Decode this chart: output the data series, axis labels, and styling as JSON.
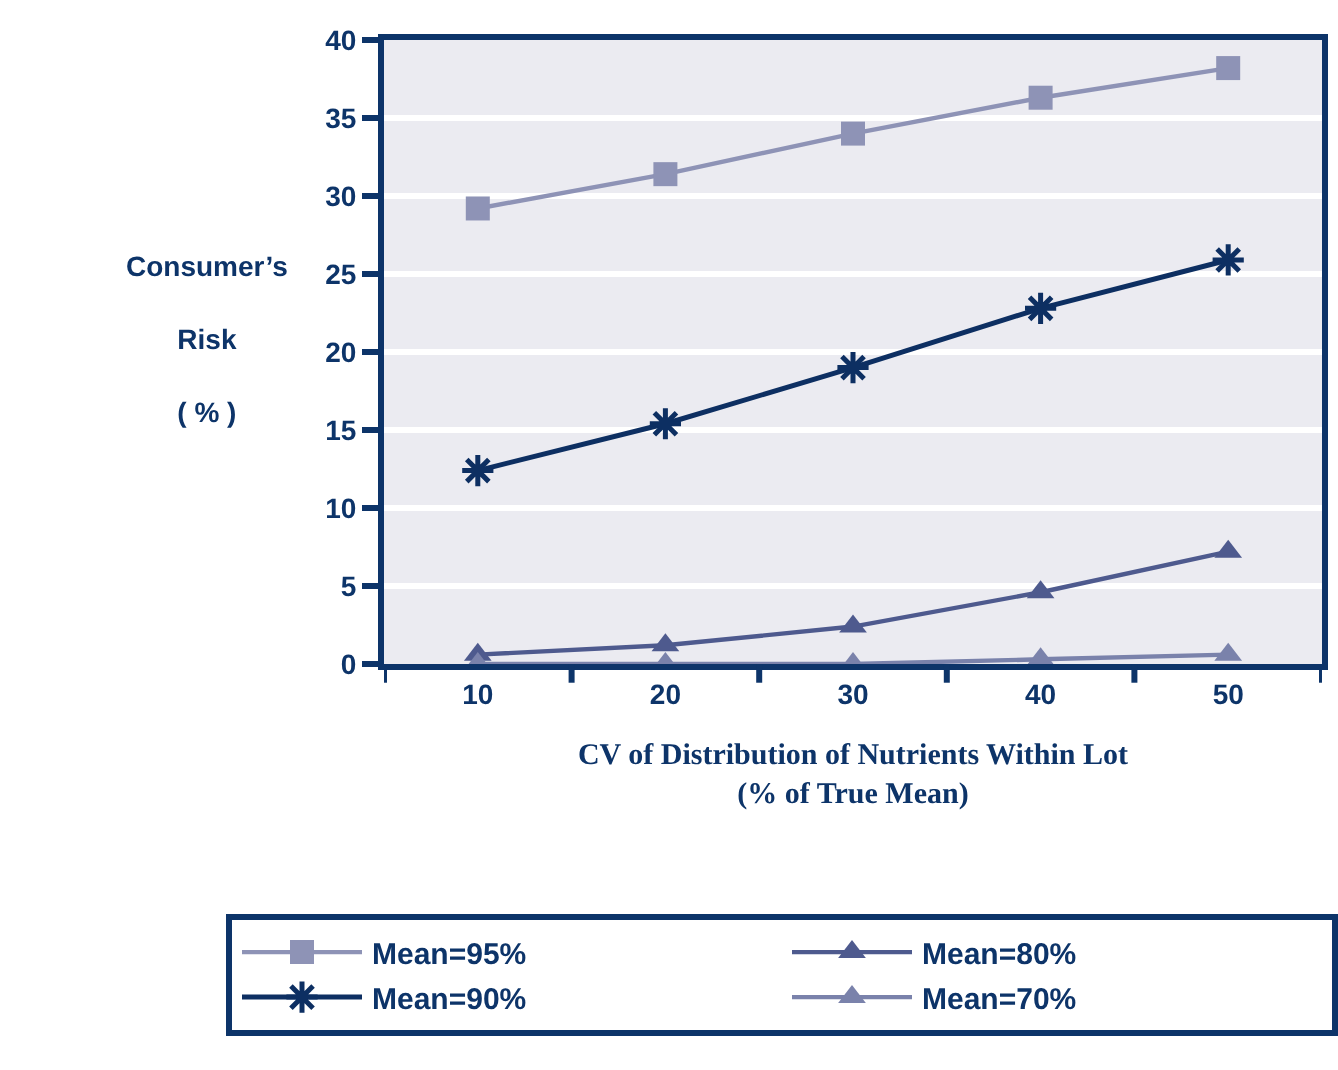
{
  "chart_data": {
    "type": "line",
    "xlabel": "CV of Distribution of Nutrients Within Lot\n(% of True Mean)",
    "ylabel": "Consumer’s\nRisk\n( % )",
    "categories": [
      "10",
      "20",
      "30",
      "40",
      "50"
    ],
    "series": [
      {
        "name": "Mean=95%",
        "color": "#8e93b6",
        "marker": "square",
        "values": [
          29.2,
          31.4,
          34.0,
          36.3,
          38.2
        ]
      },
      {
        "name": "Mean=90%",
        "color": "#0d2f62",
        "marker": "cross",
        "values": [
          12.4,
          15.4,
          19.0,
          22.8,
          25.9
        ]
      },
      {
        "name": "Mean=80%",
        "color": "#4e5a8e",
        "marker": "triangle",
        "values": [
          0.6,
          1.2,
          2.4,
          4.6,
          7.2
        ]
      },
      {
        "name": "Mean=70%",
        "color": "#7a82ab",
        "marker": "triangle",
        "values": [
          0,
          0,
          0,
          0.3,
          0.6
        ]
      }
    ],
    "ylim": [
      0,
      40
    ],
    "yticks": [
      0,
      5,
      10,
      15,
      20,
      25,
      30,
      35,
      40
    ],
    "grid": "y",
    "legend": "bottom"
  }
}
